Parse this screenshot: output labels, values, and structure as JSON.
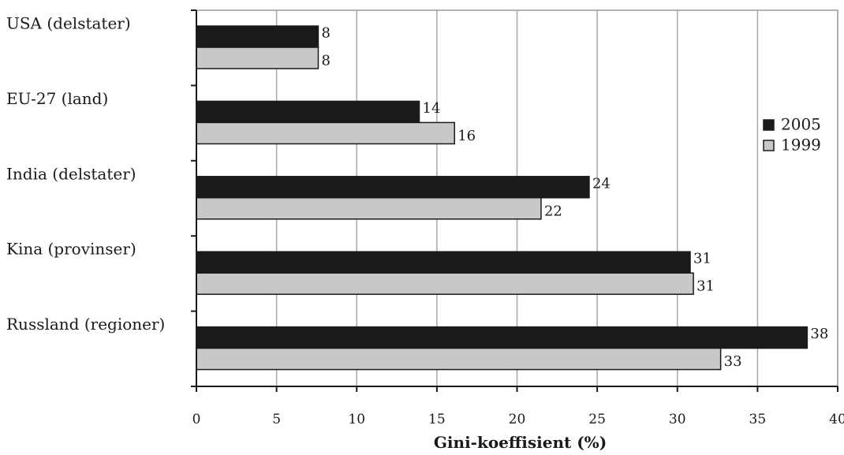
{
  "chart_data": {
    "type": "bar",
    "orientation": "horizontal",
    "categories": [
      "USA (delstater)",
      "EU-27 (land)",
      "India (delstater)",
      "Kina (provinser)",
      "Russland (regioner)"
    ],
    "series": [
      {
        "name": "2005",
        "color": "#1a1a1a",
        "values": [
          7.6,
          13.9,
          24.5,
          30.8,
          38.1
        ],
        "labels": [
          "8",
          "14",
          "24",
          "31",
          "38"
        ]
      },
      {
        "name": "1999",
        "color": "#c8c8c8",
        "values": [
          7.6,
          16.1,
          21.5,
          31.0,
          32.7
        ],
        "labels": [
          "8",
          "16",
          "22",
          "31",
          "33"
        ]
      }
    ],
    "xlabel": "Gini-koeffisient (%)",
    "ylabel": "",
    "xlim": [
      0,
      40
    ],
    "xticks": [
      0,
      5,
      10,
      15,
      20,
      25,
      30,
      35,
      40
    ],
    "xtick_labels": [
      "0",
      "5",
      "10",
      "15",
      "20",
      "25",
      "30",
      "35",
      "40"
    ],
    "grid": "vertical",
    "legend_position": "right"
  }
}
